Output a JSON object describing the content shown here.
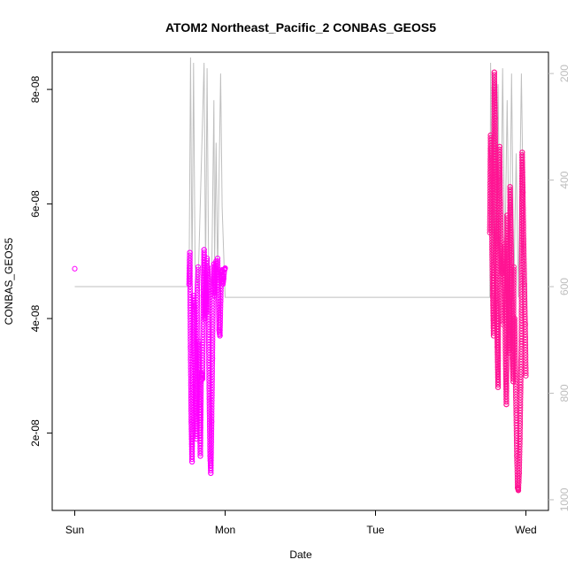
{
  "chart_data": {
    "type": "scatter",
    "title": "ATOM2 Northeast_Pacific_2 CONBAS_GEOS5",
    "xlabel": "Date",
    "ylabel": "CONBAS_GEOS5",
    "x_tick_labels": [
      "Sun",
      "Mon",
      "Tue",
      "Wed"
    ],
    "x_ticks_days": [
      0,
      1,
      2,
      3
    ],
    "xlim_days": [
      -0.15,
      3.15
    ],
    "ylim": [
      6.5e-09,
      8.65e-08
    ],
    "y_ticks": [
      2e-08,
      4e-08,
      6e-08,
      8e-08
    ],
    "y_tick_labels": [
      "2e-08",
      "4e-08",
      "6e-08",
      "8e-08"
    ],
    "y2_ticks": [
      200,
      400,
      600,
      800,
      1000
    ],
    "y2_tick_labels": [
      "200",
      "400",
      "600",
      "800",
      "1000"
    ],
    "y2lim_reversed": [
      1020,
      160
    ],
    "grid": false,
    "series": [
      {
        "color": "#ff00ff",
        "marker": "open-circle",
        "segments": [
          {
            "t0": 0.0,
            "t1": 0.0,
            "pts": [
              [
                0.0,
                4.87e-08
              ]
            ]
          },
          {
            "t0": 0.76,
            "t1": 0.82,
            "pts": [
              [
                0.76,
                4.6e-08
              ],
              [
                0.765,
                5.15e-08
              ],
              [
                0.77,
                3.5e-08
              ],
              [
                0.775,
                2.2e-08
              ],
              [
                0.78,
                1.5e-08
              ],
              [
                0.785,
                2.8e-08
              ],
              [
                0.79,
                4.4e-08
              ],
              [
                0.795,
                4.2e-08
              ],
              [
                0.8,
                3.6e-08
              ],
              [
                0.805,
                2.6e-08
              ],
              [
                0.81,
                1.9e-08
              ],
              [
                0.815,
                4.5e-08
              ],
              [
                0.82,
                4.9e-08
              ]
            ]
          },
          {
            "t0": 0.82,
            "t1": 0.88,
            "pts": [
              [
                0.825,
                3.6e-08
              ],
              [
                0.83,
                2.5e-08
              ],
              [
                0.835,
                1.6e-08
              ],
              [
                0.84,
                2.9e-08
              ],
              [
                0.845,
                3.05e-08
              ],
              [
                0.85,
                2.95e-08
              ],
              [
                0.855,
                4.4e-08
              ],
              [
                0.86,
                5.2e-08
              ],
              [
                0.865,
                4e-08
              ],
              [
                0.87,
                4.8e-08
              ],
              [
                0.875,
                4.1e-08
              ],
              [
                0.88,
                5.05e-08
              ]
            ]
          },
          {
            "t0": 0.88,
            "t1": 0.95,
            "pts": [
              [
                0.885,
                4.9e-08
              ],
              [
                0.89,
                3.9e-08
              ],
              [
                0.895,
                2.6e-08
              ],
              [
                0.9,
                1.6e-08
              ],
              [
                0.905,
                1.3e-08
              ],
              [
                0.91,
                2.2e-08
              ],
              [
                0.915,
                3.3e-08
              ],
              [
                0.92,
                4.5e-08
              ],
              [
                0.925,
                4.95e-08
              ],
              [
                0.93,
                4.4e-08
              ],
              [
                0.935,
                4.8e-08
              ],
              [
                0.94,
                5e-08
              ],
              [
                0.945,
                4.7e-08
              ]
            ]
          },
          {
            "t0": 0.95,
            "t1": 1.0,
            "pts": [
              [
                0.95,
                5.05e-08
              ],
              [
                0.955,
                4.5e-08
              ],
              [
                0.96,
                3.8e-08
              ],
              [
                0.965,
                3.7e-08
              ],
              [
                0.97,
                4.3e-08
              ],
              [
                0.975,
                4.8e-08
              ],
              [
                0.98,
                4.85e-08
              ],
              [
                0.985,
                4.6e-08
              ],
              [
                0.99,
                4.7e-08
              ],
              [
                0.995,
                4.85e-08
              ],
              [
                1.0,
                4.88e-08
              ]
            ]
          }
        ]
      },
      {
        "color": "#ff1493",
        "marker": "open-circle",
        "segments": [
          {
            "t0": 2.76,
            "t1": 2.84,
            "pts": [
              [
                2.76,
                5.5e-08
              ],
              [
                2.765,
                7.2e-08
              ],
              [
                2.77,
                6.8e-08
              ],
              [
                2.775,
                5.2e-08
              ],
              [
                2.78,
                4.4e-08
              ],
              [
                2.785,
                3.7e-08
              ],
              [
                2.79,
                8.3e-08
              ],
              [
                2.795,
                7.5e-08
              ],
              [
                2.8,
                6.2e-08
              ],
              [
                2.805,
                4.9e-08
              ],
              [
                2.81,
                3.5e-08
              ],
              [
                2.815,
                2.8e-08
              ],
              [
                2.82,
                6.4e-08
              ],
              [
                2.825,
                7e-08
              ],
              [
                2.83,
                6e-08
              ],
              [
                2.835,
                5.4e-08
              ],
              [
                2.84,
                4.8e-08
              ]
            ]
          },
          {
            "t0": 2.84,
            "t1": 2.92,
            "pts": [
              [
                2.845,
                3.9e-08
              ],
              [
                2.85,
                4.9e-08
              ],
              [
                2.855,
                5.3e-08
              ],
              [
                2.86,
                4.4e-08
              ],
              [
                2.865,
                3.3e-08
              ],
              [
                2.87,
                2.5e-08
              ],
              [
                2.875,
                5.8e-08
              ],
              [
                2.88,
                4.9e-08
              ],
              [
                2.885,
                4.2e-08
              ],
              [
                2.89,
                3.4e-08
              ],
              [
                2.895,
                6.3e-08
              ],
              [
                2.9,
                5.5e-08
              ],
              [
                2.905,
                4.8e-08
              ],
              [
                2.91,
                3.3e-08
              ],
              [
                2.915,
                2.9e-08
              ],
              [
                2.92,
                4.9e-08
              ]
            ]
          },
          {
            "t0": 2.92,
            "t1": 3.0,
            "pts": [
              [
                2.925,
                4e-08
              ],
              [
                2.93,
                3e-08
              ],
              [
                2.935,
                2.4e-08
              ],
              [
                2.94,
                1.6e-08
              ],
              [
                2.945,
                1.05e-08
              ],
              [
                2.95,
                1e-08
              ],
              [
                2.955,
                1.3e-08
              ],
              [
                2.96,
                1.9e-08
              ],
              [
                2.965,
                2.8e-08
              ],
              [
                2.97,
                3.6e-08
              ],
              [
                2.975,
                6.9e-08
              ],
              [
                2.98,
                6.2e-08
              ],
              [
                2.985,
                5.3e-08
              ],
              [
                2.99,
                4.6e-08
              ],
              [
                2.995,
                3.9e-08
              ],
              [
                3.0,
                3e-08
              ]
            ]
          }
        ]
      }
    ],
    "pressure_series": {
      "color": "#bfbfbf",
      "points": [
        [
          0.0,
          600
        ],
        [
          0.76,
          600
        ],
        [
          0.77,
          170
        ],
        [
          0.78,
          580
        ],
        [
          0.79,
          180
        ],
        [
          0.8,
          560
        ],
        [
          0.82,
          600
        ],
        [
          0.86,
          180
        ],
        [
          0.87,
          580
        ],
        [
          0.88,
          190
        ],
        [
          0.89,
          560
        ],
        [
          0.91,
          600
        ],
        [
          0.925,
          250
        ],
        [
          0.93,
          560
        ],
        [
          0.94,
          330
        ],
        [
          0.95,
          580
        ],
        [
          0.97,
          200
        ],
        [
          0.98,
          450
        ],
        [
          1.0,
          620
        ],
        [
          2.76,
          620
        ],
        [
          2.765,
          180
        ],
        [
          2.78,
          560
        ],
        [
          2.79,
          200
        ],
        [
          2.8,
          580
        ],
        [
          2.815,
          220
        ],
        [
          2.83,
          600
        ],
        [
          2.845,
          190
        ],
        [
          2.86,
          560
        ],
        [
          2.875,
          250
        ],
        [
          2.89,
          580
        ],
        [
          2.905,
          200
        ],
        [
          2.92,
          600
        ],
        [
          2.935,
          350
        ],
        [
          2.95,
          620
        ],
        [
          2.97,
          200
        ],
        [
          2.985,
          500
        ],
        [
          3.0,
          640
        ]
      ]
    }
  }
}
